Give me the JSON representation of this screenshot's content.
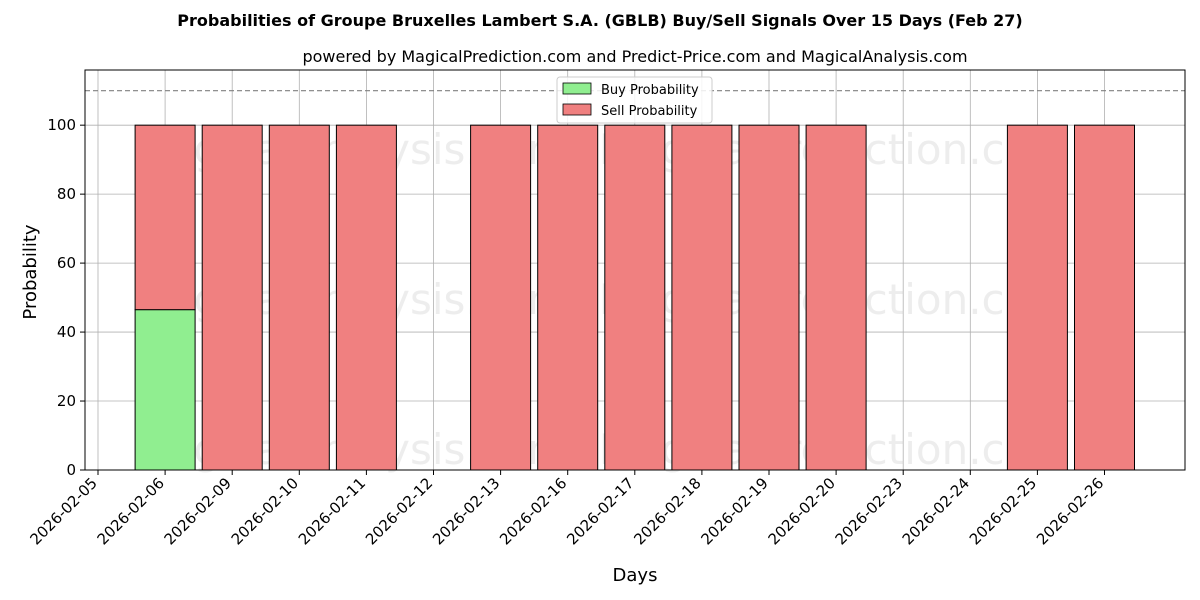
{
  "chart_data": {
    "type": "bar",
    "stacked": true,
    "title": "Probabilities of Groupe Bruxelles Lambert S.A. (GBLB) Buy/Sell Signals Over 15 Days (Feb 27)",
    "subtitle": "powered by MagicalPrediction.com and Predict-Price.com and MagicalAnalysis.com",
    "xlabel": "Days",
    "ylabel": "Probability",
    "ylim": [
      0,
      116
    ],
    "yticks": [
      0,
      20,
      40,
      60,
      80,
      100
    ],
    "reference_line": 110,
    "grid": true,
    "legend_position": "top-center",
    "categories": [
      "2026-02-05",
      "2026-02-06",
      "2026-02-09",
      "2026-02-10",
      "2026-02-11",
      "2026-02-12",
      "2026-02-13",
      "2026-02-16",
      "2026-02-17",
      "2026-02-18",
      "2026-02-19",
      "2026-02-20",
      "2026-02-23",
      "2026-02-24",
      "2026-02-25",
      "2026-02-26"
    ],
    "series": [
      {
        "name": "Buy Probability",
        "color": "#90ee90",
        "values": [
          null,
          46.5,
          0,
          0,
          0,
          null,
          0,
          0,
          0,
          0,
          0,
          0,
          null,
          null,
          0,
          0
        ]
      },
      {
        "name": "Sell Probability",
        "color": "#f08080",
        "values": [
          null,
          53.5,
          100,
          100,
          100,
          null,
          100,
          100,
          100,
          100,
          100,
          100,
          null,
          null,
          100,
          100
        ]
      }
    ],
    "watermarks": [
      "MagicalAnalysis.com",
      "MagicalPrediction.com",
      "MagicalAnalysis.com",
      "MagicalPrediction.com",
      "MagicalAnalysis.com",
      "MagicalPrediction.com"
    ]
  }
}
